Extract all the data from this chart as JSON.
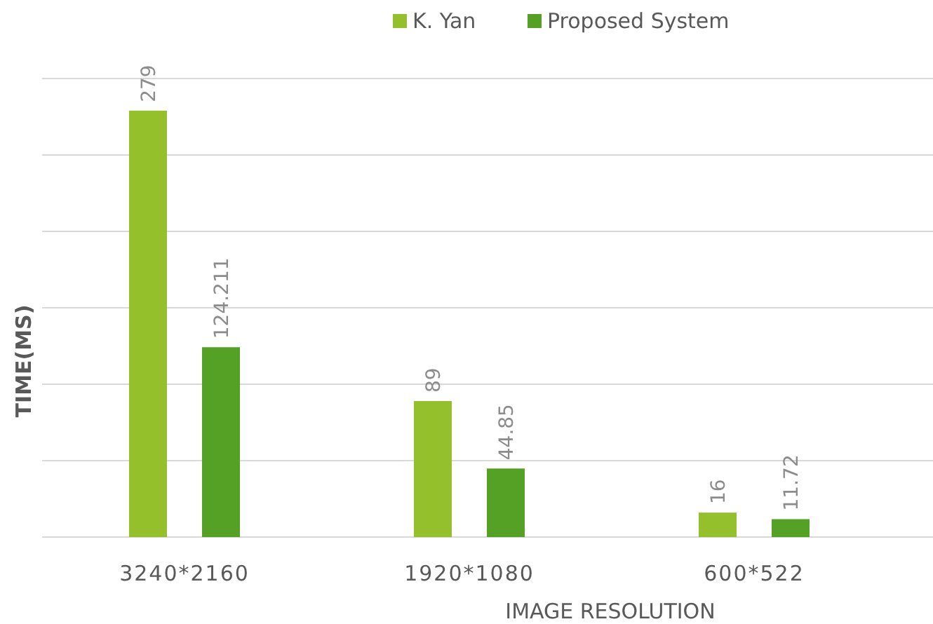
{
  "chart_data": {
    "type": "bar",
    "xlabel": "IMAGE RESOLUTION",
    "ylabel": "TIME(MS)",
    "categories": [
      "3240*2160",
      "1920*1080",
      "600*522"
    ],
    "series": [
      {
        "name": "K. Yan",
        "color": "#93c02b",
        "values": [
          279,
          89,
          16
        ]
      },
      {
        "name": "Proposed System",
        "color": "#55a126",
        "values": [
          124.211,
          44.85,
          11.72
        ]
      }
    ],
    "ylim": [
      0,
      300
    ],
    "yticks": [
      {
        "value": 0,
        "label": null
      },
      {
        "value": 50,
        "label": null
      },
      {
        "value": 100,
        "label": null
      },
      {
        "value": 150,
        "label": null
      },
      {
        "value": 200,
        "label": null
      },
      {
        "value": 250,
        "label": null
      },
      {
        "value": 300,
        "label": null
      }
    ],
    "tick_labels": "x",
    "grid": "y",
    "legend": "top",
    "data_labels": true
  }
}
